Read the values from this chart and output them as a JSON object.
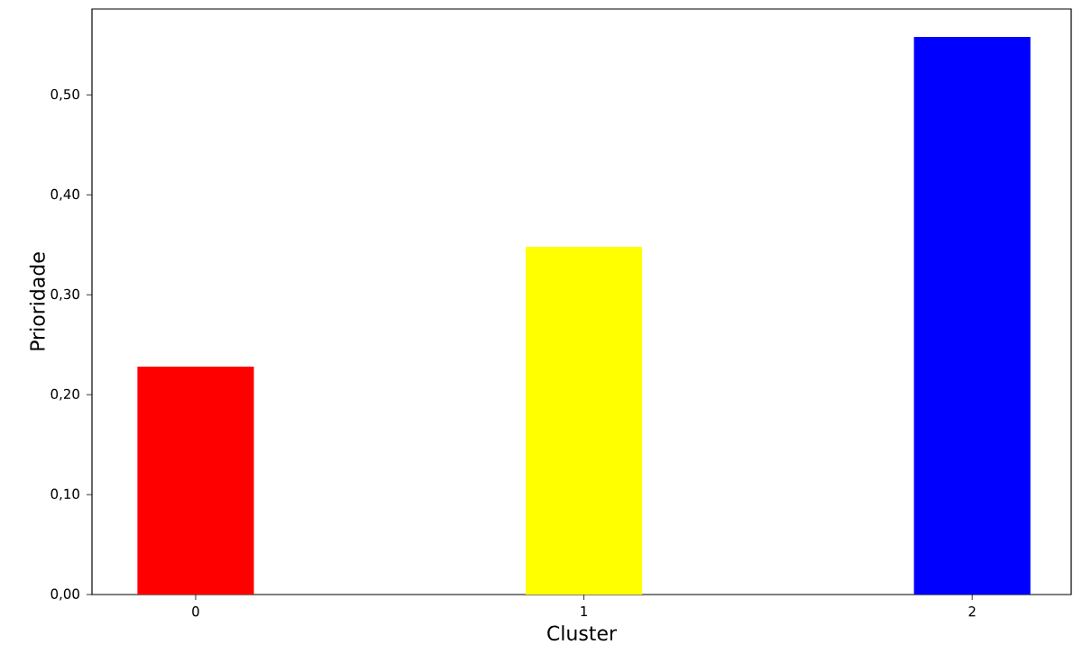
{
  "chart_data": {
    "type": "bar",
    "xlabel": "Cluster",
    "ylabel": "Prioridade",
    "categories": [
      "0",
      "1",
      "2"
    ],
    "values": [
      0.228,
      0.348,
      0.558
    ],
    "colors": [
      "#ff0000",
      "#ffff00",
      "#0000ff"
    ],
    "ylim": [
      0,
      0.586
    ],
    "yticks": [
      {
        "value": 0,
        "label": "0,00"
      },
      {
        "value": 0.1,
        "label": "0,10"
      },
      {
        "value": 0.2,
        "label": "0,20"
      },
      {
        "value": 0.3,
        "label": "0,30"
      },
      {
        "value": 0.4,
        "label": "0,40"
      },
      {
        "value": 0.5,
        "label": "0,50"
      }
    ]
  }
}
